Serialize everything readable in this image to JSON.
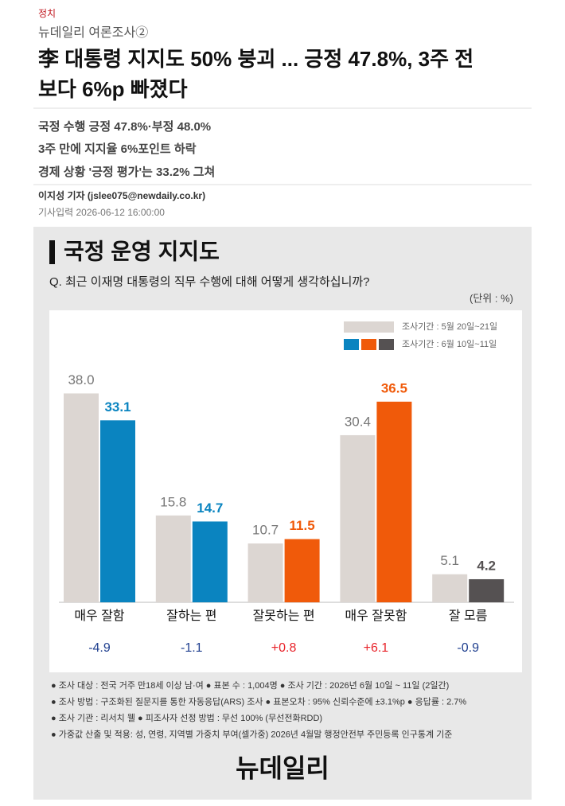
{
  "article": {
    "category": "정치",
    "series": "뉴데일리 여론조사②",
    "headline": [
      "李 대통령 지지도 50% 붕괴 ... 긍정 47.8%, 3주 전",
      "보다 6%p 빠졌다"
    ],
    "summary": [
      "국정 수행 긍정 47.8%·부정 48.0%",
      "3주 만에 지지율 6%포인트 하락",
      "경제 상황 '긍정 평가'는 33.2% 그쳐"
    ],
    "byline": "이지성 기자 (jslee075@newdaily.co.kr)",
    "date": "기사입력 2026-06-12 16:00:00"
  },
  "chart_data": {
    "type": "bar",
    "title": "국정 운영 지지도",
    "subtitle": "Q. 최근 이재명 대통령의 직무 수행에 대해 어떻게 생각하십니까?",
    "unit": "(단위 : %)",
    "categories": [
      "매우 잘함",
      "잘하는 편",
      "잘못하는 편",
      "매우 잘못함",
      "잘 모름"
    ],
    "series": [
      {
        "name": "조사기간 : 5월 20일~21일",
        "color": "#dcd6d2",
        "label_color": "#777777",
        "values": [
          38.0,
          15.8,
          10.7,
          30.4,
          5.1
        ],
        "value_labels": [
          "38.0",
          "15.8",
          "10.7",
          "30.4",
          "5.1"
        ]
      },
      {
        "name": "조사기간 : 6월 10일~11일",
        "colors": [
          "#0a84c0",
          "#0a84c0",
          "#f05a0a",
          "#f05a0a",
          "#555152"
        ],
        "values": [
          33.1,
          14.7,
          11.5,
          36.5,
          4.2
        ],
        "value_labels": [
          "33.1",
          "14.7",
          "11.5",
          "36.5",
          "4.2"
        ]
      }
    ],
    "changes": {
      "values": [
        -4.9,
        -1.1,
        0.8,
        6.1,
        -0.9
      ],
      "value_labels": [
        "-4.9",
        "-1.1",
        "+0.8",
        "+6.1",
        "-0.9"
      ],
      "negative_color": "#1f3f8f",
      "positive_color": "#e8232a"
    },
    "ylim": [
      0,
      44
    ],
    "footnotes": [
      "● 조사 대상 : 전국 거주 만18세 이상 남·여  ● 표본 수 : 1,004명  ● 조사 기간 : 2026년 6월 10일 ~ 11일 (2일간)",
      "● 조사 방법 : 구조화된 질문지를 통한 자동응답(ARS) 조사  ● 표본오차 : 95% 신뢰수준에 ±3.1%p  ● 응답률 : 2.7%",
      "● 조사 기관 : 리서치 웰  ● 피조사자 선정 방법 : 무선 100% (무선전화RDD)",
      "● 가중값 산출 및 적용: 성, 연령, 지역별 가중치 부여(셀가중) 2026년 4월말 행정안전부 주민등록 인구통계 기준"
    ],
    "logo": "뉴데일리"
  }
}
